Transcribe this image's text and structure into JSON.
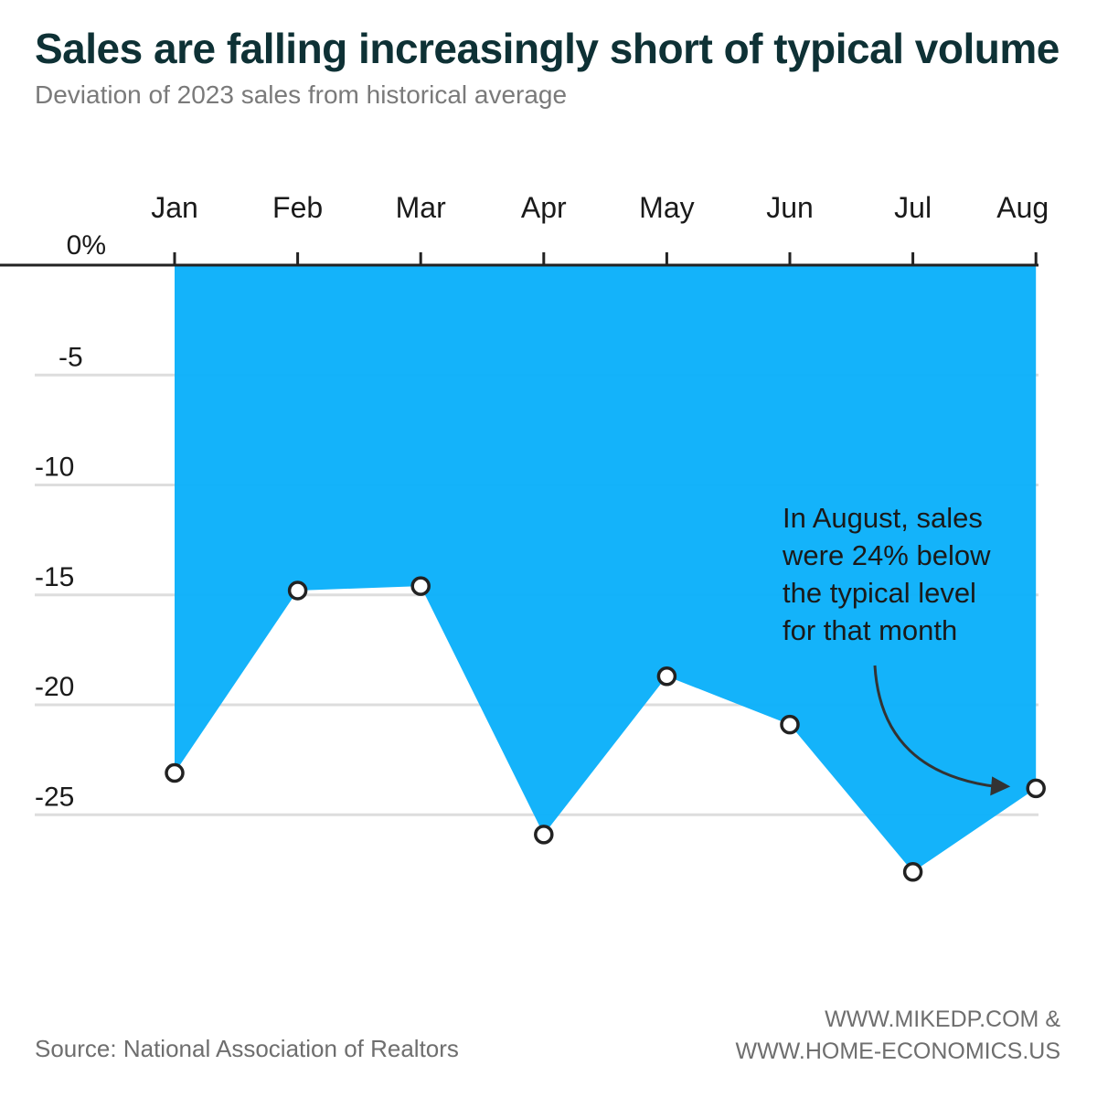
{
  "title": "Sales are falling increasingly short of typical volume",
  "subtitle": "Deviation of 2023 sales from historical average",
  "source": "Source: National Association of Realtors",
  "credit_line1": "WWW.MIKEDP.COM &",
  "credit_line2": "WWW.HOME-ECONOMICS.US",
  "colors": {
    "fill": "#0cb1fa",
    "axis": "#222222",
    "grid": "#dddddd",
    "marker_stroke": "#222222"
  },
  "chart_data": {
    "type": "area",
    "title": "Sales are falling increasingly short of typical volume",
    "subtitle": "Deviation of 2023 sales from historical average",
    "categories": [
      "Jan",
      "Feb",
      "Mar",
      "Apr",
      "May",
      "Jun",
      "Jul",
      "Aug"
    ],
    "values": [
      -23.1,
      -14.8,
      -14.6,
      -25.9,
      -18.7,
      -20.9,
      -27.6,
      -23.8
    ],
    "y_ticks": [
      "0%",
      "-5",
      "-10",
      "-15",
      "-20",
      "-25"
    ],
    "y_tick_values": [
      0,
      -5,
      -10,
      -15,
      -20,
      -25
    ],
    "ylim": [
      -30,
      0
    ],
    "x_axis_position": "top",
    "grid": true,
    "annotation": {
      "lines": [
        "In August, sales",
        "were 24% below",
        "the typical level",
        "for that month"
      ],
      "target": "Aug"
    }
  }
}
